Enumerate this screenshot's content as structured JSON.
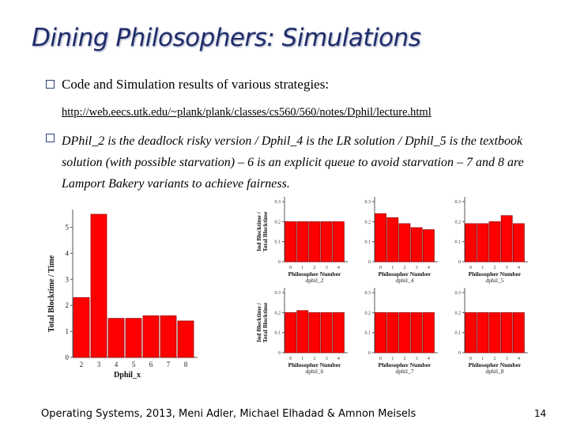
{
  "slide": {
    "title": "Dining Philosophers: Simulations",
    "bullet1": "Code and Simulation results of various strategies:",
    "link": "http://web.eecs.utk.edu/~plank/plank/classes/cs560/560/notes/Dphil/lecture.html",
    "bullet2": "DPhil_2 is the deadlock risky version / Dphil_4 is the LR solution / Dphil_5 is the textbook solution (with possible starvation) – 6 is an explicit queue to avoid starvation – 7 and 8 are Lamport Bakery variants to achieve fairness.",
    "footer": "Operating Systems, 2013, Meni Adler, Michael Elhadad & Amnon Meisels",
    "page_number": "14"
  },
  "chart_data": [
    {
      "type": "bar",
      "id": "main",
      "categories": [
        "2",
        "3",
        "4",
        "5",
        "6",
        "7",
        "8"
      ],
      "values": [
        2.3,
        5.5,
        1.5,
        1.5,
        1.6,
        1.6,
        1.4
      ],
      "ylim": [
        0,
        5.5
      ],
      "yticks": [
        "0",
        "1",
        "2",
        "3",
        "4",
        "5"
      ],
      "xlabel": "Dphil_x",
      "ylabel": "Total Blocktime / Time",
      "bar_color": "#ff0000"
    },
    {
      "type": "bar",
      "id": "dphil_2",
      "categories": [
        "0",
        "1",
        "2",
        "3",
        "4"
      ],
      "values": [
        0.2,
        0.2,
        0.2,
        0.2,
        0.2
      ],
      "ylim": [
        0,
        0.3
      ],
      "yticks": [
        "0",
        "0.1",
        "0.2",
        "0.3"
      ],
      "xlabel": "Philosopher Number",
      "ylabel": "Ind Blocktime / Total Blocktime",
      "caption": "dphil_2",
      "bar_color": "#ff0000"
    },
    {
      "type": "bar",
      "id": "dphil_4",
      "categories": [
        "0",
        "1",
        "2",
        "3",
        "4"
      ],
      "values": [
        0.24,
        0.22,
        0.19,
        0.17,
        0.16
      ],
      "ylim": [
        0,
        0.3
      ],
      "yticks": [
        "0",
        "0.1",
        "0.2",
        "0.3"
      ],
      "xlabel": "Philosopher Number",
      "ylabel": "",
      "caption": "dphil_4",
      "bar_color": "#ff0000"
    },
    {
      "type": "bar",
      "id": "dphil_5",
      "categories": [
        "0",
        "1",
        "2",
        "3",
        "4"
      ],
      "values": [
        0.19,
        0.19,
        0.2,
        0.23,
        0.19
      ],
      "ylim": [
        0,
        0.3
      ],
      "yticks": [
        "0",
        "0.1",
        "0.2",
        "0.3"
      ],
      "xlabel": "Philosopher Number",
      "ylabel": "",
      "caption": "dphil_5",
      "bar_color": "#ff0000"
    },
    {
      "type": "bar",
      "id": "dphil_6",
      "categories": [
        "0",
        "1",
        "2",
        "3",
        "4"
      ],
      "values": [
        0.2,
        0.21,
        0.2,
        0.2,
        0.2
      ],
      "ylim": [
        0,
        0.3
      ],
      "yticks": [
        "0",
        "0.1",
        "0.2",
        "0.3"
      ],
      "xlabel": "Philosopher Number",
      "ylabel": "Ind Blocktime / Total Blocktime",
      "caption": "dphil_6",
      "bar_color": "#ff0000"
    },
    {
      "type": "bar",
      "id": "dphil_7",
      "categories": [
        "0",
        "1",
        "2",
        "3",
        "4"
      ],
      "values": [
        0.2,
        0.2,
        0.2,
        0.2,
        0.2
      ],
      "ylim": [
        0,
        0.3
      ],
      "yticks": [
        "0",
        "0.1",
        "0.2",
        "0.3"
      ],
      "xlabel": "Philosopher Number",
      "ylabel": "",
      "caption": "dphil_7",
      "bar_color": "#ff0000"
    },
    {
      "type": "bar",
      "id": "dphil_8",
      "categories": [
        "0",
        "1",
        "2",
        "3",
        "4"
      ],
      "values": [
        0.2,
        0.2,
        0.2,
        0.2,
        0.2
      ],
      "ylim": [
        0,
        0.3
      ],
      "yticks": [
        "0",
        "0.1",
        "0.2",
        "0.3"
      ],
      "xlabel": "Philosopher Number",
      "ylabel": "",
      "caption": "dphil_8",
      "bar_color": "#ff0000"
    }
  ]
}
